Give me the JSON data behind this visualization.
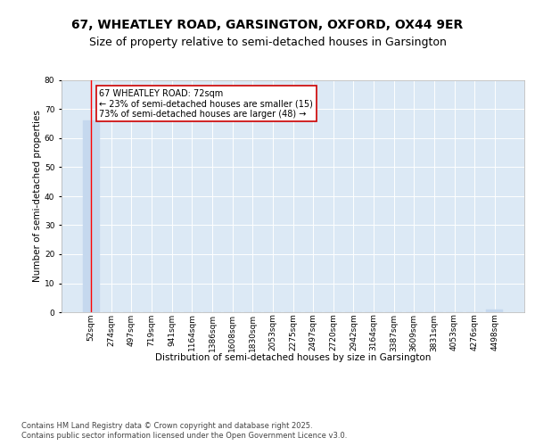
{
  "title": "67, WHEATLEY ROAD, GARSINGTON, OXFORD, OX44 9ER",
  "subtitle": "Size of property relative to semi-detached houses in Garsington",
  "xlabel": "Distribution of semi-detached houses by size in Garsington",
  "ylabel": "Number of semi-detached properties",
  "bin_labels": [
    "52sqm",
    "274sqm",
    "497sqm",
    "719sqm",
    "941sqm",
    "1164sqm",
    "1386sqm",
    "1608sqm",
    "1830sqm",
    "2053sqm",
    "2275sqm",
    "2497sqm",
    "2720sqm",
    "2942sqm",
    "3164sqm",
    "3387sqm",
    "3609sqm",
    "3831sqm",
    "4053sqm",
    "4276sqm",
    "4498sqm"
  ],
  "values": [
    66,
    0,
    0,
    0,
    0,
    0,
    0,
    0,
    0,
    0,
    0,
    0,
    0,
    0,
    0,
    0,
    0,
    0,
    0,
    0,
    1
  ],
  "bar_color": "#c5d8ee",
  "annotation_text": "67 WHEATLEY ROAD: 72sqm\n← 23% of semi-detached houses are smaller (15)\n73% of semi-detached houses are larger (48) →",
  "annotation_box_color": "#cc0000",
  "plot_bg_color": "#dce9f5",
  "ylim": [
    0,
    80
  ],
  "yticks": [
    0,
    10,
    20,
    30,
    40,
    50,
    60,
    70,
    80
  ],
  "footer_text": "Contains HM Land Registry data © Crown copyright and database right 2025.\nContains public sector information licensed under the Open Government Licence v3.0.",
  "title_fontsize": 10,
  "subtitle_fontsize": 9,
  "axis_label_fontsize": 7.5,
  "tick_fontsize": 6.5,
  "annotation_fontsize": 7,
  "footer_fontsize": 6
}
